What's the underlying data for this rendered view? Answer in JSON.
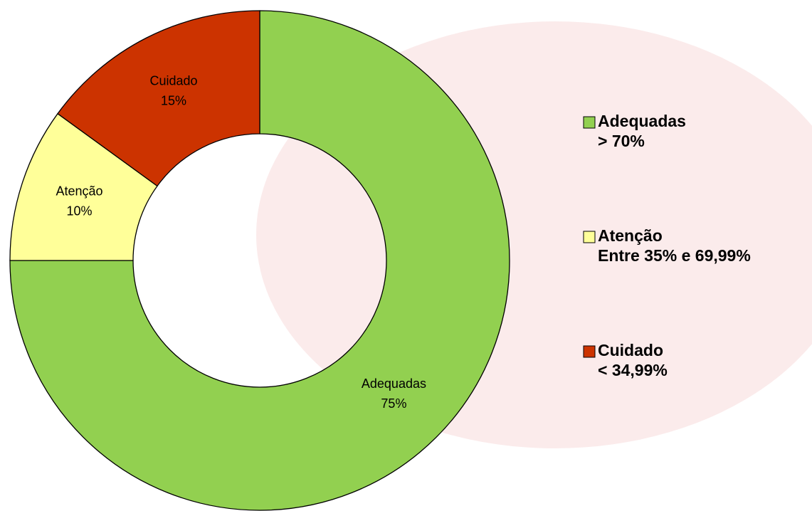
{
  "chart_data": {
    "type": "donut",
    "categories": [
      "Adequadas",
      "Atenção",
      "Cuidado"
    ],
    "values": [
      75,
      10,
      15
    ],
    "value_labels": [
      "75%",
      "10%",
      "15%"
    ],
    "colors": [
      "#92d050",
      "#ffff99",
      "#cc3300"
    ],
    "legend_descriptions": [
      "> 70%",
      "Entre 35% e 69,99%",
      "< 34,99%"
    ],
    "legend": "right"
  }
}
